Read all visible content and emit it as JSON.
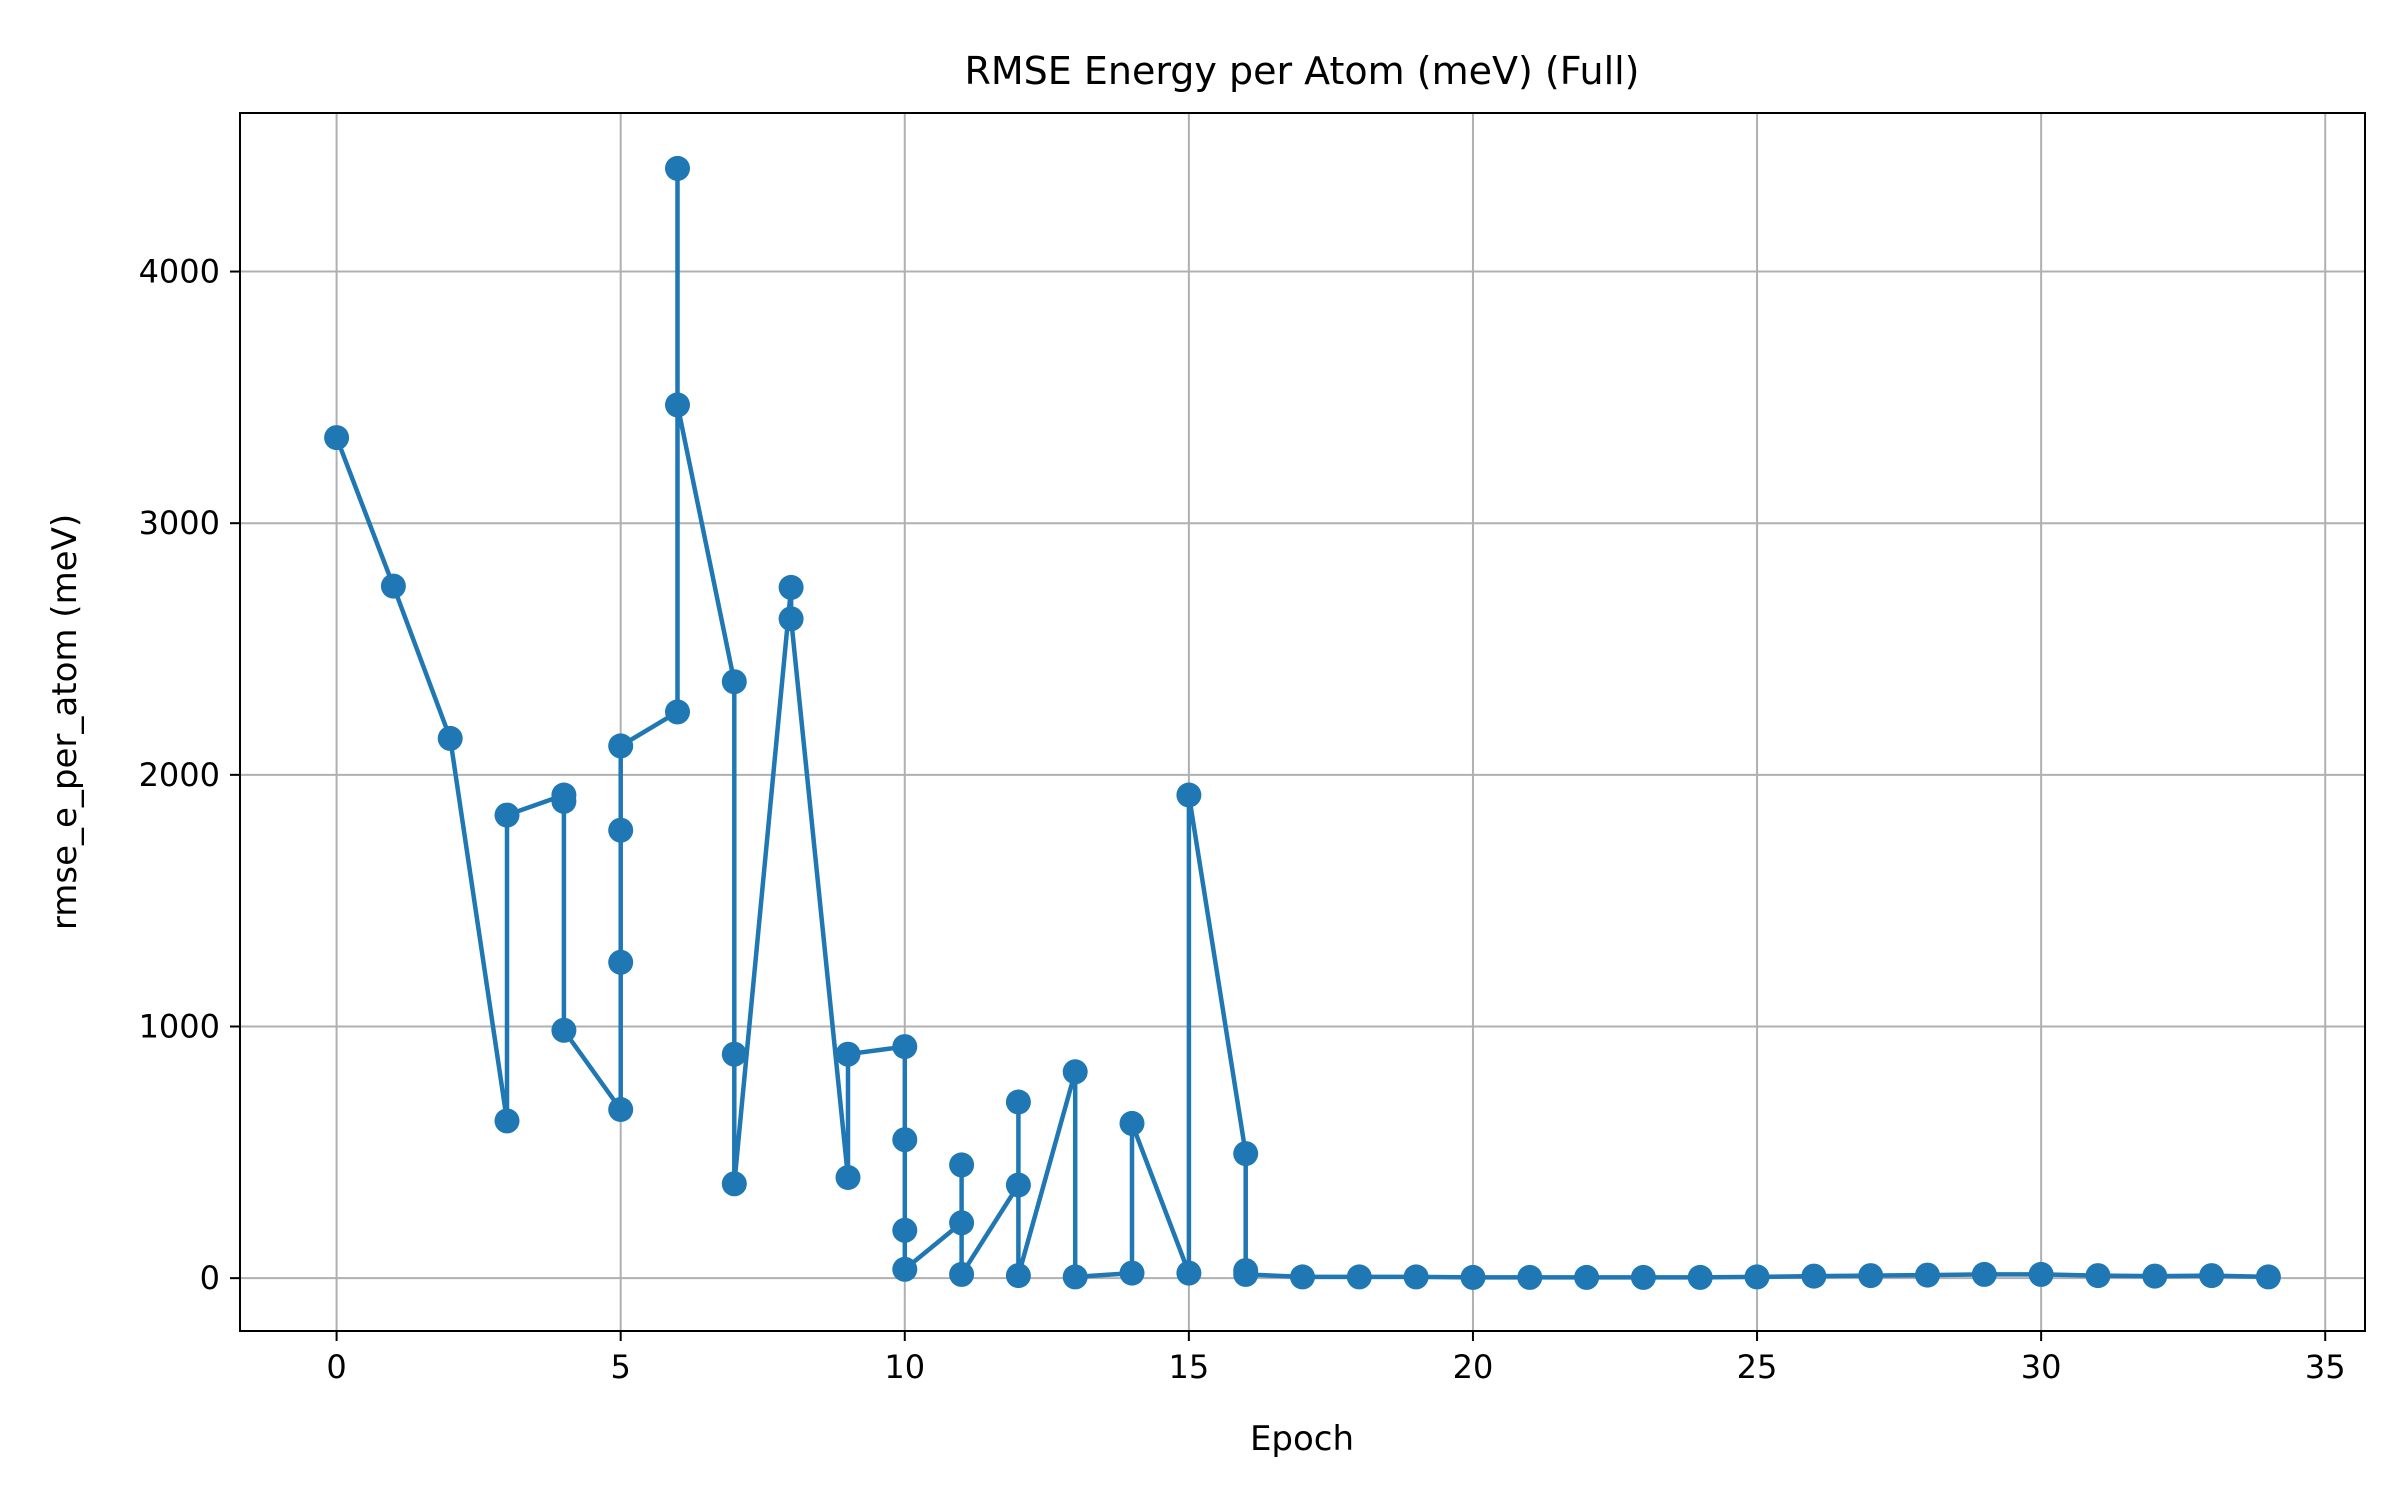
{
  "chart_data": {
    "type": "line",
    "title": "RMSE Energy per Atom (meV) (Full)",
    "xlabel": "Epoch",
    "ylabel": "rmse_e_per_atom (meV)",
    "xlim": [
      -1.7,
      35.7
    ],
    "ylim": [
      -210,
      4630
    ],
    "xticks": [
      0,
      5,
      10,
      15,
      20,
      25,
      30,
      35
    ],
    "yticks": [
      0,
      1000,
      2000,
      3000,
      4000
    ],
    "grid": true,
    "marker": "circle",
    "color": "#1f77b4",
    "series": [
      {
        "x": [
          0,
          1,
          2,
          3,
          3,
          4,
          4,
          4,
          5,
          5,
          5,
          5,
          6,
          6,
          6,
          7,
          7,
          7,
          8,
          8,
          9,
          9,
          10,
          10,
          10,
          10,
          11,
          11,
          11,
          12,
          12,
          12,
          13,
          13,
          14,
          14,
          15,
          15,
          16,
          16,
          16,
          17,
          18,
          19,
          20,
          21,
          22,
          23,
          24,
          25,
          26,
          27,
          28,
          29,
          30,
          31,
          32,
          33,
          34
        ],
        "y": [
          3340,
          2750,
          2145,
          625,
          1840,
          1920,
          1895,
          985,
          670,
          1255,
          1780,
          2115,
          2250,
          4410,
          3470,
          2370,
          890,
          375,
          2745,
          2620,
          400,
          890,
          920,
          550,
          190,
          35,
          220,
          450,
          15,
          370,
          700,
          10,
          820,
          5,
          20,
          615,
          20,
          1920,
          495,
          30,
          15,
          5,
          5,
          5,
          3,
          3,
          3,
          3,
          3,
          5,
          8,
          10,
          12,
          15,
          15,
          10,
          8,
          10,
          5
        ]
      }
    ]
  }
}
